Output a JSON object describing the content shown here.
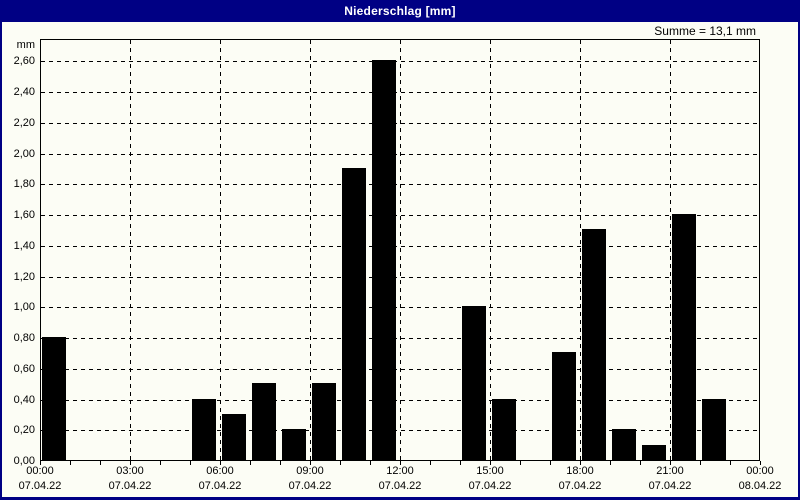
{
  "window": {
    "title": "Niederschlag [mm]"
  },
  "summary": {
    "text": "Summe = 13,1 mm"
  },
  "colors": {
    "titlebar": "#000084",
    "title_text": "#ffffff",
    "background": "#fcfdf5",
    "bar": "#000000",
    "grid": "#000000"
  },
  "chart_data": {
    "type": "bar",
    "title": "Niederschlag [mm]",
    "ylabel": "mm",
    "sum_annotation": "Summe = 13,1 mm",
    "ylim": [
      0,
      2.745
    ],
    "grid": {
      "h_step_mm": 0.2,
      "v_step_hours": 3,
      "style": "dashed"
    },
    "y_ticks": [
      {
        "value": 0.0,
        "label": "0,00"
      },
      {
        "value": 0.2,
        "label": "0,20"
      },
      {
        "value": 0.4,
        "label": "0,40"
      },
      {
        "value": 0.6,
        "label": "0,60"
      },
      {
        "value": 0.8,
        "label": "0,80"
      },
      {
        "value": 1.0,
        "label": "1,00"
      },
      {
        "value": 1.2,
        "label": "1,20"
      },
      {
        "value": 1.4,
        "label": "1,40"
      },
      {
        "value": 1.6,
        "label": "1,60"
      },
      {
        "value": 1.8,
        "label": "1,80"
      },
      {
        "value": 2.0,
        "label": "2,00"
      },
      {
        "value": 2.2,
        "label": "2,20"
      },
      {
        "value": 2.4,
        "label": "2,40"
      },
      {
        "value": 2.6,
        "label": "2,60"
      }
    ],
    "x_axis_hours": 24,
    "x_minor_tick_every_hours": 1,
    "x_ticks": [
      {
        "hour": 0,
        "time": "00:00",
        "date": "07.04.22"
      },
      {
        "hour": 3,
        "time": "03:00",
        "date": "07.04.22"
      },
      {
        "hour": 6,
        "time": "06:00",
        "date": "07.04.22"
      },
      {
        "hour": 9,
        "time": "09:00",
        "date": "07.04.22"
      },
      {
        "hour": 12,
        "time": "12:00",
        "date": "07.04.22"
      },
      {
        "hour": 15,
        "time": "15:00",
        "date": "07.04.22"
      },
      {
        "hour": 18,
        "time": "18:00",
        "date": "07.04.22"
      },
      {
        "hour": 21,
        "time": "21:00",
        "date": "07.04.22"
      },
      {
        "hour": 24,
        "time": "00:00",
        "date": "08.04.22"
      }
    ],
    "bars": [
      {
        "hour": 0,
        "value": 0.8
      },
      {
        "hour": 5,
        "value": 0.4
      },
      {
        "hour": 6,
        "value": 0.3
      },
      {
        "hour": 7,
        "value": 0.5
      },
      {
        "hour": 8,
        "value": 0.2
      },
      {
        "hour": 9,
        "value": 0.5
      },
      {
        "hour": 10,
        "value": 1.9
      },
      {
        "hour": 11,
        "value": 2.6
      },
      {
        "hour": 14,
        "value": 1.0
      },
      {
        "hour": 15,
        "value": 0.4
      },
      {
        "hour": 17,
        "value": 0.7
      },
      {
        "hour": 18,
        "value": 1.5
      },
      {
        "hour": 19,
        "value": 0.2
      },
      {
        "hour": 20,
        "value": 0.1
      },
      {
        "hour": 21,
        "value": 1.6
      },
      {
        "hour": 22,
        "value": 0.4
      }
    ]
  }
}
